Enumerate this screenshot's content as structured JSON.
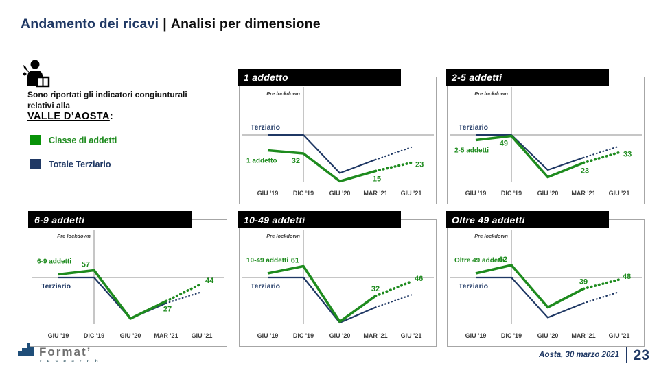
{
  "title": {
    "primary": "Andamento dei ricavi",
    "separator": "|",
    "secondary": "Analisi per dimensione"
  },
  "sidebar": {
    "intro": "Sono riportati gli indicatori congiunturali relativi alla",
    "region": "VALLE D’AOSTA",
    "region_colon": ":",
    "legend": [
      {
        "label": "Classe di addetti",
        "swatch": "#089208",
        "text_color": "#1e8b1e"
      },
      {
        "label": "Totale Terziario",
        "swatch": "#1f3864",
        "text_color": "#1f3864"
      }
    ]
  },
  "colors": {
    "green": "#1e8b1e",
    "navy": "#1f3864",
    "axis_line": "#8c8c8c",
    "tick_text": "#3d3d3d",
    "pre_label_text": "#404040",
    "header_bg": "#000000",
    "box_border": "#a6a6a6"
  },
  "chart_data": {
    "type": "line",
    "x_categories": [
      "GIU '19",
      "DIC '19",
      "GIU '20",
      "MAR '21",
      "GIU '21"
    ],
    "forecast_from_index": 3,
    "baseline_value": 50,
    "legend_note": {
      "green_series": "Classe di addetti",
      "navy_series": "Totale Terziario"
    },
    "charts": [
      {
        "title": "1 addetto",
        "pre_label": "Pre lockdown",
        "terziario_label": "Terziario",
        "series_label": "1 addetto",
        "series": [
          {
            "name": "Terziario",
            "color": "navy",
            "values": [
              50,
              50,
              13,
              26,
              38
            ]
          },
          {
            "name": "1 addetto",
            "color": "green",
            "values": [
              35,
              32,
              5,
              15,
              23
            ]
          }
        ],
        "annotations": [
          {
            "index": 1,
            "text": "32",
            "pos": "below-left"
          },
          {
            "index": 3,
            "text": "15",
            "pos": "below"
          },
          {
            "index": 4,
            "text": "23",
            "pos": "right-below"
          }
        ]
      },
      {
        "title": "2-5 addetti",
        "pre_label": "Pre lockdown",
        "terziario_label": "Terziario",
        "series_label": "2-5 addetti",
        "series": [
          {
            "name": "Terziario",
            "color": "navy",
            "values": [
              50,
              50,
              16,
              28,
              39
            ]
          },
          {
            "name": "2-5 addetti",
            "color": "green",
            "values": [
              45,
              49,
              9,
              23,
              33
            ]
          }
        ],
        "annotations": [
          {
            "index": 1,
            "text": "49",
            "pos": "below-left"
          },
          {
            "index": 3,
            "text": "23",
            "pos": "below"
          },
          {
            "index": 4,
            "text": "33",
            "pos": "right-below"
          }
        ]
      },
      {
        "title": "6-9 addetti",
        "pre_label": "Pre lockdown",
        "terziario_label": "Terziario",
        "series_label": "6-9 addetti",
        "series": [
          {
            "name": "Terziario",
            "color": "navy",
            "values": [
              50,
              50,
              10,
              25,
              36
            ]
          },
          {
            "name": "6-9 addetti",
            "color": "green",
            "values": [
              53,
              57,
              10,
              27,
              44
            ]
          }
        ],
        "annotations": [
          {
            "index": 1,
            "text": "57",
            "pos": "above-left"
          },
          {
            "index": 3,
            "text": "27",
            "pos": "below"
          },
          {
            "index": 4,
            "text": "44",
            "pos": "right-above"
          }
        ]
      },
      {
        "title": "10-49 addetti",
        "pre_label": "Pre lockdown",
        "terziario_label": "Terziario",
        "series_label": "10-49 addetti",
        "series": [
          {
            "name": "Terziario",
            "color": "navy",
            "values": [
              50,
              50,
              6,
              21,
              33
            ]
          },
          {
            "name": "10-49 addetti",
            "color": "green",
            "values": [
              54,
              61,
              7,
              32,
              46
            ]
          }
        ],
        "annotations": [
          {
            "index": 1,
            "text": "61",
            "pos": "above-left"
          },
          {
            "index": 3,
            "text": "32",
            "pos": "above"
          },
          {
            "index": 4,
            "text": "46",
            "pos": "right-above"
          }
        ]
      },
      {
        "title": "Oltre 49 addetti",
        "pre_label": "Pre lockdown",
        "terziario_label": "Terziario",
        "series_label": "Oltre 49 addetti",
        "series": [
          {
            "name": "Terziario",
            "color": "navy",
            "values": [
              50,
              50,
              11,
              25,
              36
            ]
          },
          {
            "name": "Oltre 49 addetti",
            "color": "green",
            "values": [
              54,
              62,
              21,
              39,
              48
            ]
          }
        ],
        "annotations": [
          {
            "index": 1,
            "text": "62",
            "pos": "above-left"
          },
          {
            "index": 3,
            "text": "39",
            "pos": "above"
          },
          {
            "index": 4,
            "text": "48",
            "pos": "right-above"
          }
        ]
      }
    ]
  },
  "footer": {
    "logo_text": "Format’",
    "logo_sub": "r e s e a r c h",
    "date": "Aosta, 30 marzo 2021",
    "page_number": "23"
  }
}
